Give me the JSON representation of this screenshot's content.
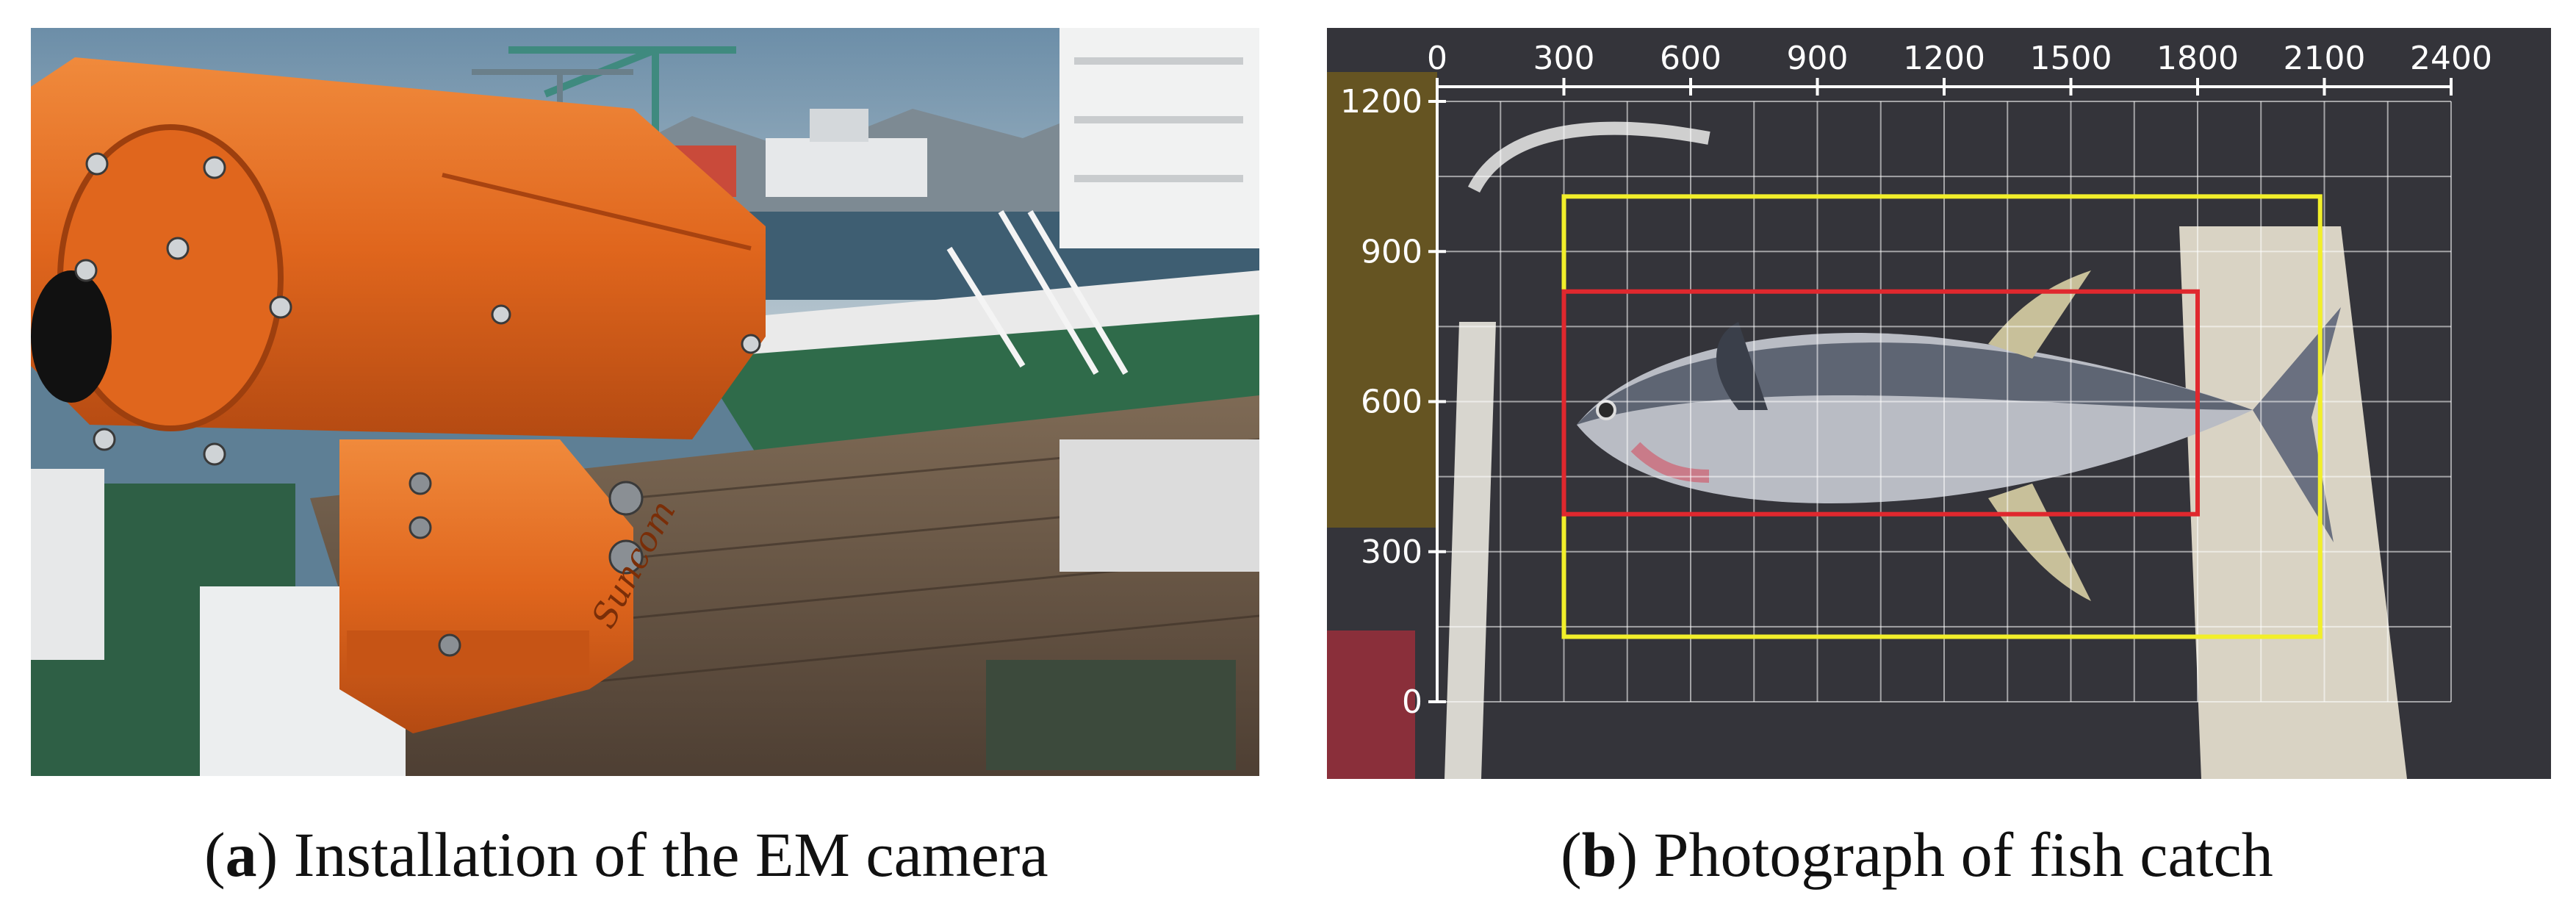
{
  "panel_a": {
    "caption_open": "(",
    "caption_letter": "a",
    "caption_text": ") Installation of the EM camera",
    "camera_logo_text": "Suncom",
    "colors": {
      "camera_housing": "#e0661d",
      "sky": "#7f9db2",
      "deck": "#6b5a4a",
      "hull_green": "#2f6b4a"
    }
  },
  "panel_b": {
    "caption_open": "(",
    "caption_letter": "b",
    "caption_text": ") Photograph of fish catch",
    "x_ticks": [
      "0",
      "300",
      "600",
      "900",
      "1200",
      "1500",
      "1800",
      "2100",
      "2400"
    ],
    "y_ticks": [
      "1200",
      "900",
      "600",
      "300",
      "0"
    ],
    "boxes": [
      {
        "color": "#f2ef2a",
        "x_min": 300,
        "x_max": 2090,
        "y_min": 130,
        "y_max": 1010
      },
      {
        "color": "#e0282e",
        "x_min": 300,
        "x_max": 1800,
        "y_min": 375,
        "y_max": 820
      }
    ],
    "colors": {
      "grid": "#ffffff",
      "background_mat": "#3a3a40",
      "fish_body": "#b9bcc4"
    }
  }
}
